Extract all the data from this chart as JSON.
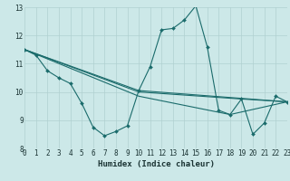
{
  "background_color": "#cce8e8",
  "grid_color": "#b0d0d0",
  "line_color": "#1a6b6b",
  "xlabel": "Humidex (Indice chaleur)",
  "ylim": [
    8,
    13
  ],
  "xlim": [
    0,
    23
  ],
  "yticks": [
    8,
    9,
    10,
    11,
    12,
    13
  ],
  "xticks": [
    0,
    1,
    2,
    3,
    4,
    5,
    6,
    7,
    8,
    9,
    10,
    11,
    12,
    13,
    14,
    15,
    16,
    17,
    18,
    19,
    20,
    21,
    22,
    23
  ],
  "series": [
    {
      "x": [
        0,
        1,
        2,
        3,
        4,
        5,
        6,
        7,
        8,
        9,
        10,
        11,
        12,
        13,
        14,
        15,
        16,
        17,
        18,
        19,
        20,
        21,
        22,
        23
      ],
      "y": [
        11.5,
        11.3,
        10.75,
        10.5,
        10.3,
        9.6,
        8.75,
        8.45,
        8.6,
        8.8,
        10.05,
        10.9,
        12.2,
        12.25,
        12.55,
        13.05,
        11.6,
        9.35,
        9.2,
        9.75,
        8.5,
        8.9,
        9.85,
        9.65
      ]
    },
    {
      "x": [
        0,
        10,
        23
      ],
      "y": [
        11.5,
        10.05,
        9.65
      ]
    },
    {
      "x": [
        0,
        10,
        19,
        23
      ],
      "y": [
        11.5,
        10.0,
        9.75,
        9.65
      ]
    },
    {
      "x": [
        0,
        10,
        18,
        23
      ],
      "y": [
        11.5,
        9.85,
        9.2,
        9.65
      ]
    }
  ]
}
